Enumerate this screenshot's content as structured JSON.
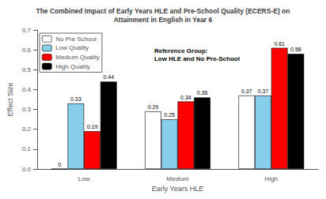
{
  "chart_data": {
    "type": "bar",
    "title": "The Combined Impact of Early Years HLE and Pre-School Quality (ECERS-E) on\nAttainment in English in Year 6",
    "xlabel": "Early Years HLE",
    "ylabel": "Effect Size",
    "categories": [
      "Low",
      "Medium",
      "High"
    ],
    "series": [
      {
        "name": "No Pre School",
        "color": "#ffffff",
        "values": [
          0.0,
          0.29,
          0.37
        ]
      },
      {
        "name": "Low Quality",
        "color": "#87ceeb",
        "values": [
          0.33,
          0.25,
          0.37
        ]
      },
      {
        "name": "Medium Quality",
        "color": "#ff0000",
        "values": [
          0.19,
          0.34,
          0.61
        ]
      },
      {
        "name": "High Quality",
        "color": "#000000",
        "values": [
          0.44,
          0.36,
          0.58
        ]
      }
    ],
    "ylim": [
      0,
      0.7
    ],
    "yticks": [
      {
        "value": 0,
        "label": "0.0"
      },
      0.1,
      0.2,
      0.3,
      0.4,
      0.5,
      0.6,
      0.7
    ],
    "annotation": "Reference Group:\nLow HLE and No Pre-School",
    "legend": "upper left",
    "data_labels": true,
    "grid": false
  }
}
